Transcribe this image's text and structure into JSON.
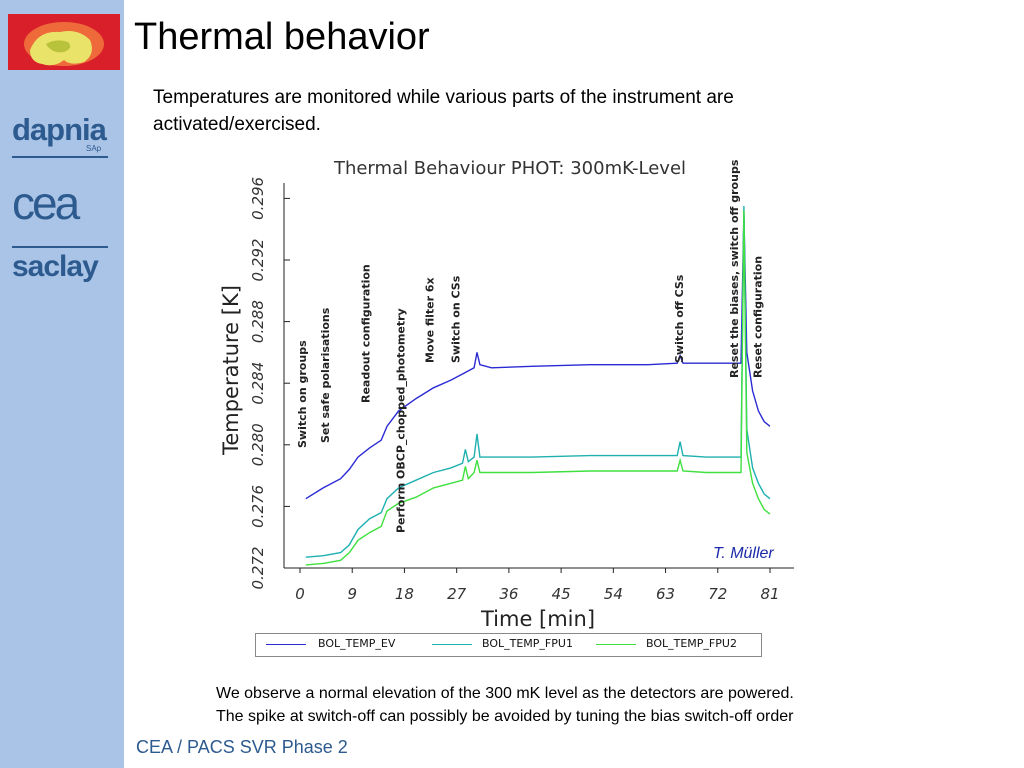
{
  "slide": {
    "title": "Thermal behavior",
    "intro": "Temperatures are monitored while various parts of the instrument are activated/exercised.",
    "author": "T. Müller",
    "conclusion_line1": "We observe a normal elevation of the 300 mK level as the detectors are powered.",
    "conclusion_line2": "The spike at switch-off can possibly be avoided by tuning the bias switch-off order",
    "footer": "CEA / PACS SVR Phase 2"
  },
  "sidebar": {
    "logo1": "dapnia",
    "logo1_sub": "SAp",
    "logo2": "cea",
    "logo3": "saclay"
  },
  "colors": {
    "sidebar": "#a9c4e6",
    "brand_blue": "#2d5a8f",
    "series_ev": "#2b2bd4",
    "series_fpu1": "#1fb0b0",
    "series_fpu2": "#3fe03f"
  },
  "chart_data": {
    "type": "line",
    "title": "Thermal Behaviour PHOT: 300mK-Level",
    "xlabel": "Time [min]",
    "ylabel": "Temperature [K]",
    "xlim": [
      0,
      81
    ],
    "ylim": [
      0.272,
      0.297
    ],
    "x_ticks": [
      "0",
      "9",
      "18",
      "27",
      "36",
      "45",
      "54",
      "63",
      "72",
      "81"
    ],
    "y_ticks": [
      "0.272",
      "0.276",
      "0.280",
      "0.284",
      "0.288",
      "0.292",
      "0.296"
    ],
    "grid": false,
    "legend_position": "bottom",
    "series": [
      {
        "name": "BOL_TEMP_EV",
        "points": [
          [
            1,
            0.2765
          ],
          [
            4,
            0.2772
          ],
          [
            7,
            0.2778
          ],
          [
            8.5,
            0.2784
          ],
          [
            10,
            0.2792
          ],
          [
            12,
            0.2798
          ],
          [
            14,
            0.2803
          ],
          [
            15,
            0.2812
          ],
          [
            17,
            0.2822
          ],
          [
            20,
            0.283
          ],
          [
            23,
            0.2837
          ],
          [
            26,
            0.2842
          ],
          [
            28,
            0.2846
          ],
          [
            30,
            0.285
          ],
          [
            30.5,
            0.286
          ],
          [
            31,
            0.2852
          ],
          [
            33,
            0.285
          ],
          [
            40,
            0.2851
          ],
          [
            50,
            0.2852
          ],
          [
            60,
            0.2852
          ],
          [
            65,
            0.2853
          ],
          [
            65.5,
            0.2858
          ],
          [
            66,
            0.2853
          ],
          [
            70,
            0.2853
          ],
          [
            75,
            0.2853
          ],
          [
            76,
            0.2853
          ],
          [
            76.5,
            0.295
          ],
          [
            77,
            0.286
          ],
          [
            78,
            0.2835
          ],
          [
            79,
            0.2822
          ],
          [
            80,
            0.2815
          ],
          [
            81,
            0.2812
          ]
        ]
      },
      {
        "name": "BOL_TEMP_FPU1",
        "points": [
          [
            1,
            0.2727
          ],
          [
            4,
            0.2728
          ],
          [
            7,
            0.273
          ],
          [
            8.5,
            0.2735
          ],
          [
            10,
            0.2745
          ],
          [
            12,
            0.2752
          ],
          [
            14,
            0.2756
          ],
          [
            15,
            0.2765
          ],
          [
            17,
            0.2772
          ],
          [
            20,
            0.2777
          ],
          [
            23,
            0.2782
          ],
          [
            26,
            0.2785
          ],
          [
            28,
            0.2788
          ],
          [
            28.5,
            0.2797
          ],
          [
            29,
            0.2789
          ],
          [
            30,
            0.2792
          ],
          [
            30.5,
            0.2807
          ],
          [
            31,
            0.2792
          ],
          [
            33,
            0.2792
          ],
          [
            40,
            0.2792
          ],
          [
            50,
            0.2793
          ],
          [
            60,
            0.2793
          ],
          [
            65,
            0.2793
          ],
          [
            65.5,
            0.2802
          ],
          [
            66,
            0.2793
          ],
          [
            70,
            0.2792
          ],
          [
            75,
            0.2792
          ],
          [
            76,
            0.2792
          ],
          [
            76.5,
            0.2955
          ],
          [
            77,
            0.281
          ],
          [
            78,
            0.2785
          ],
          [
            79,
            0.2775
          ],
          [
            80,
            0.2768
          ],
          [
            81,
            0.2765
          ]
        ]
      },
      {
        "name": "BOL_TEMP_FPU2",
        "points": [
          [
            1,
            0.2722
          ],
          [
            4,
            0.2723
          ],
          [
            7,
            0.2725
          ],
          [
            8.5,
            0.273
          ],
          [
            10,
            0.2738
          ],
          [
            12,
            0.2743
          ],
          [
            14,
            0.2747
          ],
          [
            15,
            0.2757
          ],
          [
            17,
            0.2762
          ],
          [
            20,
            0.2766
          ],
          [
            23,
            0.2772
          ],
          [
            26,
            0.2775
          ],
          [
            28,
            0.2777
          ],
          [
            28.5,
            0.2786
          ],
          [
            29,
            0.2778
          ],
          [
            30,
            0.2782
          ],
          [
            30.5,
            0.279
          ],
          [
            31,
            0.2782
          ],
          [
            33,
            0.2782
          ],
          [
            40,
            0.2782
          ],
          [
            50,
            0.2783
          ],
          [
            60,
            0.2783
          ],
          [
            65,
            0.2783
          ],
          [
            65.5,
            0.279
          ],
          [
            66,
            0.2783
          ],
          [
            70,
            0.2782
          ],
          [
            75,
            0.2782
          ],
          [
            76,
            0.2782
          ],
          [
            76.5,
            0.2952
          ],
          [
            77,
            0.2795
          ],
          [
            78,
            0.2775
          ],
          [
            79,
            0.2765
          ],
          [
            80,
            0.2758
          ],
          [
            81,
            0.2755
          ]
        ]
      }
    ],
    "annotations": [
      {
        "text": "Switch on groups",
        "x": 1
      },
      {
        "text": "Set safe polarisations",
        "x": 5
      },
      {
        "text": "Readout configuration",
        "x": 12
      },
      {
        "text": "Perform OBCP_chopped_photometry",
        "x": 18
      },
      {
        "text": "Move filter 6x",
        "x": 23
      },
      {
        "text": "Switch on CSs",
        "x": 27.5
      },
      {
        "text": "Switch off CSs",
        "x": 66
      },
      {
        "text": "Reset the biases, switch off groups",
        "x": 75.5
      },
      {
        "text": "Reset configuration",
        "x": 79.5
      }
    ]
  }
}
